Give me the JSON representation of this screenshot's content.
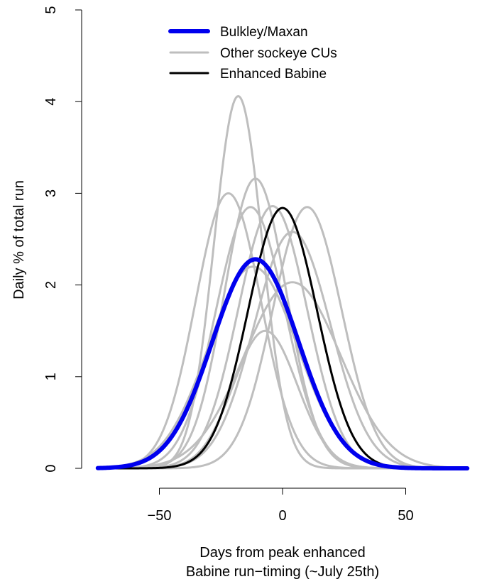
{
  "chart_data": {
    "type": "line",
    "title": "",
    "xlabel_lines": [
      "Days from peak enhanced",
      "Babine run−timing (~July 25th)"
    ],
    "ylabel": "Daily % of total run",
    "xlim": [
      -75,
      75
    ],
    "ylim": [
      0,
      5
    ],
    "xticks": [
      -50,
      0,
      50
    ],
    "xtick_labels": [
      "−50",
      "0",
      "50"
    ],
    "yticks": [
      0,
      1,
      2,
      3,
      4,
      5
    ],
    "ytick_labels": [
      "0",
      "1",
      "2",
      "3",
      "4",
      "5"
    ],
    "grid": false,
    "legend_position": "top-center",
    "legend": [
      {
        "label": "Bulkley/Maxan",
        "color": "#0000ee",
        "style": "thick"
      },
      {
        "label": "Other sockeye CUs",
        "color": "#bebebe",
        "style": "normal"
      },
      {
        "label": "Enhanced Babine",
        "color": "#000000",
        "style": "normal"
      }
    ],
    "series": [
      {
        "name": "Bulkley/Maxan",
        "color": "#0000ee",
        "peak_day": -11,
        "peak_value": 2.28,
        "sd_days": 17.5
      },
      {
        "name": "Enhanced Babine",
        "color": "#000000",
        "peak_day": 0,
        "peak_value": 2.84,
        "sd_days": 14
      },
      {
        "name": "Other sockeye CUs",
        "color": "#bebebe",
        "curves": [
          {
            "peak_day": -18,
            "peak_value": 4.06,
            "sd_days": 9.8
          },
          {
            "peak_day": -22,
            "peak_value": 3.0,
            "sd_days": 13.3
          },
          {
            "peak_day": -11,
            "peak_value": 3.16,
            "sd_days": 12.6
          },
          {
            "peak_day": -13,
            "peak_value": 2.85,
            "sd_days": 14
          },
          {
            "peak_day": -4,
            "peak_value": 2.86,
            "sd_days": 14
          },
          {
            "peak_day": 10,
            "peak_value": 2.85,
            "sd_days": 14
          },
          {
            "peak_day": 4,
            "peak_value": 2.58,
            "sd_days": 15.5
          },
          {
            "peak_day": 4,
            "peak_value": 2.03,
            "sd_days": 19.6
          },
          {
            "peak_day": -12,
            "peak_value": 2.2,
            "sd_days": 18
          },
          {
            "peak_day": -7,
            "peak_value": 1.5,
            "sd_days": 13
          }
        ]
      }
    ]
  }
}
